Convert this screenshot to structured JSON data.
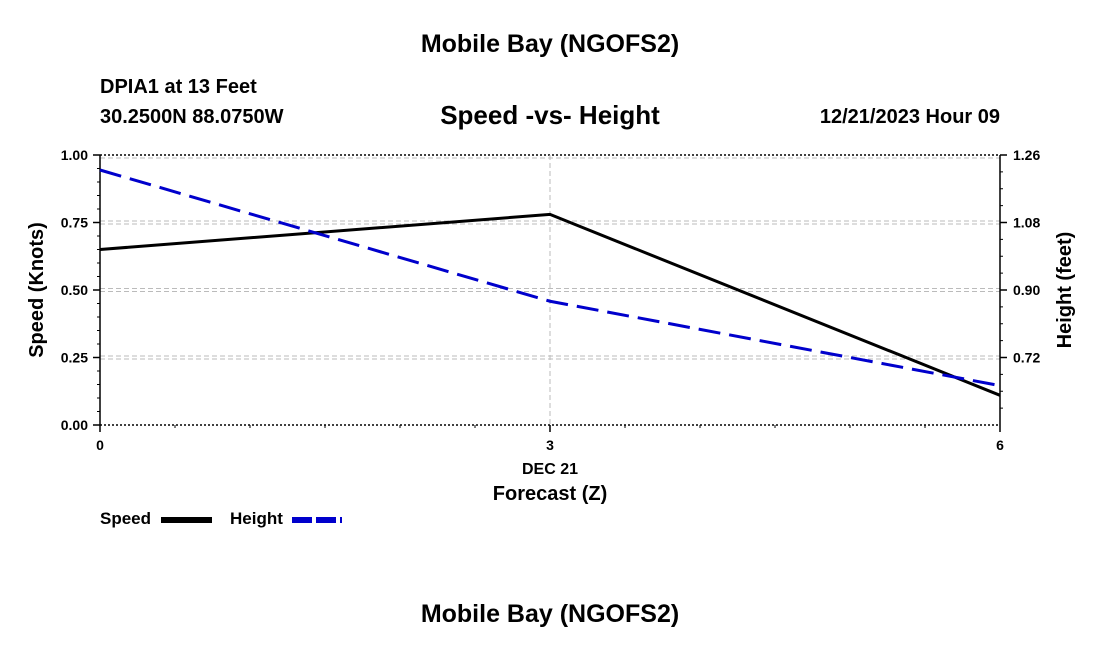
{
  "header": {
    "title": "Mobile Bay (NGOFS2)",
    "station": "DPIA1 at 13 Feet",
    "coordinates": "30.2500N  88.0750W",
    "subtitle": "Speed -vs- Height",
    "datetime": "12/21/2023 Hour 09"
  },
  "footer": {
    "title": "Mobile Bay (NGOFS2)"
  },
  "chart_data": {
    "type": "line",
    "title": "Speed -vs- Height",
    "x": [
      0,
      3,
      6
    ],
    "xlim": [
      0,
      6
    ],
    "xticks": [
      "0",
      "3",
      "6"
    ],
    "xlabel_date": "DEC 21",
    "xlabel": "Forecast (Z)",
    "ylabel": "Speed (Knots)",
    "ylim": [
      0,
      1
    ],
    "yticks": [
      "0.00",
      "0.25",
      "0.50",
      "0.75",
      "1.00"
    ],
    "ylabel_right": "Height (feet)",
    "ylim_right": [
      0.54,
      1.26
    ],
    "yticks_right": [
      "0.72",
      "0.90",
      "1.08",
      "1.26"
    ],
    "grid": true,
    "series": [
      {
        "name": "Speed",
        "axis": "left",
        "color": "#000000",
        "style": "solid",
        "values": [
          0.65,
          0.78,
          0.11
        ]
      },
      {
        "name": "Height",
        "axis": "right",
        "color": "#0000cc",
        "style": "dashed",
        "values": [
          1.22,
          0.87,
          0.645
        ]
      }
    ],
    "legend": "bottom-left"
  }
}
